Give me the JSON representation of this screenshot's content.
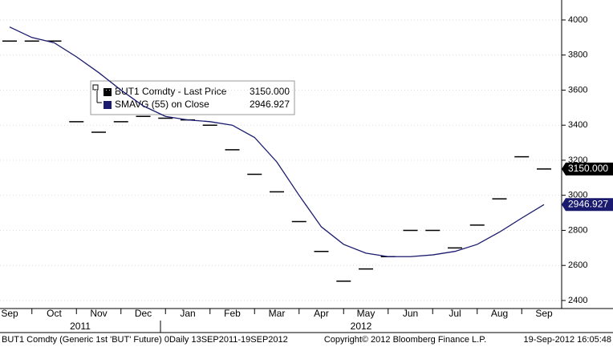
{
  "chart_data": {
    "type": "bar-line",
    "categories": [
      "Sep",
      null,
      "Oct",
      null,
      "Nov",
      null,
      "Dec",
      null,
      "Jan",
      null,
      "Feb",
      null,
      "Mar",
      null,
      "Apr",
      null,
      "May",
      null,
      "Jun",
      null,
      "Jul",
      null,
      "Aug",
      null,
      "Sep"
    ],
    "year_labels": [
      "2011",
      "2012"
    ],
    "series": [
      {
        "name": "BUT1 Comdty - Last Price",
        "color": "#000000",
        "style": "dash",
        "legend_value": "3150.000",
        "values": [
          3880,
          3880,
          3880,
          3420,
          3360,
          3420,
          3450,
          3440,
          3430,
          3400,
          3260,
          3120,
          3020,
          2850,
          2680,
          2510,
          2580,
          2650,
          2800,
          2800,
          2700,
          2830,
          2980,
          3220,
          3150
        ]
      },
      {
        "name": "SMAVG (55) on Close",
        "color": "#1a1a6e",
        "style": "line",
        "legend_value": "2946.927",
        "values": [
          3960,
          3900,
          3870,
          3790,
          3700,
          3600,
          3510,
          3450,
          3430,
          3420,
          3400,
          3330,
          3190,
          3000,
          2820,
          2720,
          2670,
          2650,
          2650,
          2660,
          2680,
          2720,
          2790,
          2870,
          2947
        ]
      }
    ],
    "ylim": [
      2354,
      4114
    ],
    "yticks": [
      2400,
      2600,
      2800,
      3000,
      3200,
      3400,
      3600,
      3800,
      4000
    ],
    "footer": {
      "left": "BUT1 Comdty (Generic 1st 'BUT' Future) 0Daily 13SEP2011-19SEP2012",
      "center": "Copyright© 2012 Bloomberg Finance L.P.",
      "right": "19-Sep-2012 16:05:48"
    }
  }
}
